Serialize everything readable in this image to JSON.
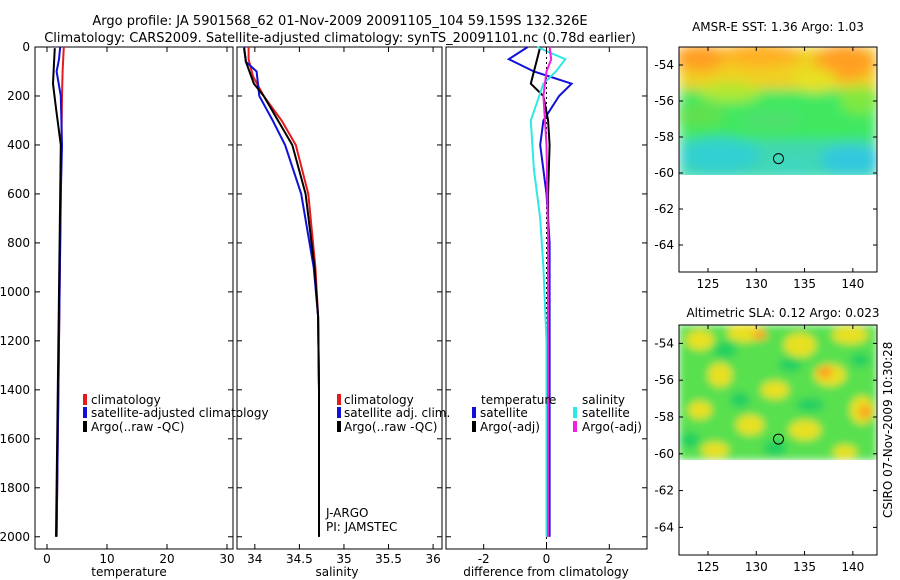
{
  "figure": {
    "title_line1": "Argo profile: JA 5901568_62 01-Nov-2009 20091105_104 59.159S 132.326E",
    "title_line2": "Climatology: CARS2009. Satellite-adjusted climatology: synTS_20091101.nc (0.78d earlier)",
    "side_label": "CSIRO 07-Nov-2009 10:30:28"
  },
  "colors": {
    "red": "#e41a1c",
    "blue": "#1010d8",
    "black": "#000000",
    "cyan": "#30e8e8",
    "magenta": "#f020e0"
  },
  "chart_data": [
    {
      "id": "temperature",
      "type": "line",
      "xlabel": "temperature",
      "xlim": [
        -2,
        31
      ],
      "ylim": [
        2050,
        0
      ],
      "xticks": [
        0,
        10,
        20,
        30
      ],
      "yticks": [
        0,
        200,
        400,
        600,
        800,
        1000,
        1200,
        1400,
        1600,
        1800,
        2000
      ],
      "legend": {
        "position": "bottom-right",
        "entries": [
          "climatology",
          "satellite-adjusted climatology",
          "Argo(..raw -QC)"
        ]
      },
      "series": [
        {
          "name": "climatology",
          "color": "red",
          "x": [
            2.8,
            2.7,
            2.6,
            2.5,
            2.4,
            2.3,
            2.2,
            2.1,
            1.9,
            1.7,
            1.6
          ],
          "y": [
            0,
            50,
            100,
            200,
            400,
            600,
            800,
            1000,
            1400,
            1800,
            2000
          ]
        },
        {
          "name": "satellite-adjusted climatology",
          "color": "blue",
          "x": [
            2.2,
            2.0,
            1.6,
            2.3,
            2.5,
            2.3,
            2.2,
            2.1,
            1.9,
            1.7,
            1.6
          ],
          "y": [
            0,
            50,
            100,
            200,
            400,
            600,
            800,
            1000,
            1400,
            1800,
            2000
          ]
        },
        {
          "name": "Argo(..raw -QC)",
          "color": "black",
          "x": [
            1.3,
            1.2,
            1.0,
            1.5,
            2.3,
            2.2,
            2.1,
            2.0,
            1.8,
            1.6,
            1.5
          ],
          "y": [
            5,
            50,
            150,
            250,
            400,
            600,
            800,
            1000,
            1400,
            1800,
            2000
          ]
        }
      ]
    },
    {
      "id": "salinity",
      "type": "line",
      "xlabel": "salinity",
      "xlim": [
        33.8,
        36.1
      ],
      "ylim": [
        2050,
        0
      ],
      "xticks": [
        34,
        34.5,
        35,
        35.5,
        36
      ],
      "legend": {
        "position": "bottom-right",
        "entries": [
          "climatology",
          "satellite adj. clim.",
          "Argo(..raw -QC)"
        ]
      },
      "annotations": [
        "J-ARGO",
        "PI: JAMSTEC"
      ],
      "series": [
        {
          "name": "climatology",
          "color": "red",
          "x": [
            33.93,
            33.93,
            33.98,
            34.1,
            34.3,
            34.46,
            34.6,
            34.68,
            34.71,
            34.72,
            34.72,
            34.72
          ],
          "y": [
            0,
            50,
            120,
            200,
            300,
            400,
            600,
            900,
            1100,
            1400,
            1800,
            2000
          ]
        },
        {
          "name": "satellite adj. clim.",
          "color": "blue",
          "x": [
            33.88,
            33.9,
            34.02,
            34.05,
            34.2,
            34.34,
            34.52,
            34.66,
            34.71,
            34.72,
            34.72,
            34.72
          ],
          "y": [
            0,
            60,
            100,
            200,
            300,
            400,
            600,
            900,
            1100,
            1400,
            1800,
            2000
          ]
        },
        {
          "name": "Argo(..raw -QC)",
          "color": "black",
          "x": [
            33.88,
            33.9,
            33.99,
            34.1,
            34.26,
            34.42,
            34.57,
            34.67,
            34.71,
            34.72,
            34.72,
            34.72
          ],
          "y": [
            5,
            60,
            150,
            200,
            300,
            400,
            600,
            900,
            1100,
            1400,
            1800,
            2000
          ]
        }
      ]
    },
    {
      "id": "difference",
      "type": "line",
      "xlabel": "difference from climatology",
      "xlim": [
        -3.2,
        3.2
      ],
      "ylim": [
        2050,
        0
      ],
      "xticks": [
        -2,
        0,
        2
      ],
      "legend": {
        "position": "bottom-right",
        "headers": [
          "temperature",
          "salinity"
        ],
        "entries": [
          "satellite",
          "Argo(-adj)",
          "satellite",
          "Argo(-adj)"
        ]
      },
      "series": [
        {
          "name": "temperature satellite",
          "color": "blue",
          "x": [
            -0.6,
            -1.2,
            -0.4,
            0.8,
            0.4,
            -0.1,
            -0.2,
            0,
            0.1,
            0.1,
            0.1,
            0.1
          ],
          "y": [
            0,
            50,
            100,
            150,
            200,
            300,
            400,
            600,
            800,
            1200,
            1600,
            2000
          ]
        },
        {
          "name": "temperature Argo(-adj)",
          "color": "black",
          "x": [
            -0.2,
            -0.3,
            -0.4,
            -0.5,
            -0.1,
            0.05,
            0.1,
            0.05,
            0.05,
            0.05,
            0.05,
            0.05
          ],
          "y": [
            0,
            50,
            100,
            150,
            200,
            300,
            400,
            600,
            800,
            1200,
            1600,
            2000
          ]
        },
        {
          "name": "salinity satellite",
          "color": "cyan",
          "x": [
            -0.3,
            0.6,
            0.3,
            -0.1,
            -0.5,
            -0.4,
            -0.2,
            -0.1,
            0,
            0
          ],
          "y": [
            0,
            50,
            100,
            150,
            300,
            500,
            700,
            900,
            1200,
            2000
          ]
        },
        {
          "name": "salinity Argo(-adj)",
          "color": "magenta",
          "x": [
            0.1,
            0.15,
            0.0,
            -0.1,
            0.0,
            0.05,
            0.05,
            0.05
          ],
          "y": [
            0,
            50,
            100,
            200,
            400,
            800,
            1400,
            2000
          ]
        }
      ]
    },
    {
      "id": "sst-map",
      "type": "heatmap",
      "title": "AMSR-E SST: 1.36 Argo: 1.03",
      "xlim": [
        122,
        142.5
      ],
      "ylim": [
        -65.5,
        -53
      ],
      "xticks": [
        125,
        130,
        135,
        140
      ],
      "yticks": [
        -54,
        -56,
        -58,
        -60,
        -62,
        -64
      ],
      "data_lat_range": [
        -53,
        -60.1
      ],
      "marker": {
        "lon": 132.3,
        "lat": -59.2
      }
    },
    {
      "id": "sla-map",
      "type": "heatmap",
      "title": "Altimetric SLA: 0.12 Argo: 0.023",
      "xlim": [
        122,
        142.5
      ],
      "ylim": [
        -65.5,
        -53
      ],
      "xticks": [
        125,
        130,
        135,
        140
      ],
      "yticks": [
        -54,
        -56,
        -58,
        -60,
        -62,
        -64
      ],
      "data_lat_range": [
        -53,
        -60.1
      ],
      "marker": {
        "lon": 132.3,
        "lat": -59.2
      }
    }
  ]
}
